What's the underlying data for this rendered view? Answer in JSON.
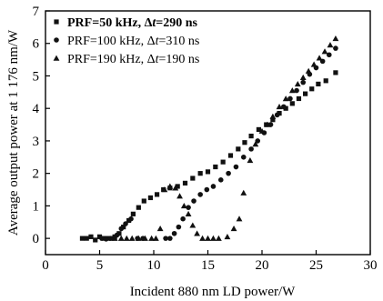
{
  "chart_data": {
    "type": "scatter",
    "title": "",
    "xlabel": "Incident 880 nm LD power/W",
    "ylabel": "Average output power at 1 176 nm/W",
    "xlim": [
      0,
      30
    ],
    "ylim": [
      -0.5,
      7
    ],
    "x_ticks": [
      0,
      5,
      10,
      15,
      20,
      25,
      30
    ],
    "y_ticks": [
      0,
      1,
      2,
      3,
      4,
      5,
      6,
      7
    ],
    "grid": false,
    "legend_position": "top-left",
    "series": [
      {
        "name_parts": [
          "PRF=50 kHz, Δ",
          "t",
          "=290 ns"
        ],
        "marker": "square",
        "bold": true,
        "color": "#111111",
        "points": [
          [
            3.4,
            0.0
          ],
          [
            3.8,
            0.0
          ],
          [
            4.2,
            0.05
          ],
          [
            4.6,
            -0.05
          ],
          [
            5.0,
            0.05
          ],
          [
            5.4,
            0.0
          ],
          [
            5.8,
            0.0
          ],
          [
            6.1,
            0.0
          ],
          [
            6.4,
            0.05
          ],
          [
            6.8,
            0.15
          ],
          [
            7.2,
            0.35
          ],
          [
            7.7,
            0.55
          ],
          [
            8.1,
            0.75
          ],
          [
            8.6,
            0.95
          ],
          [
            9.1,
            1.15
          ],
          [
            9.7,
            1.25
          ],
          [
            10.3,
            1.35
          ],
          [
            10.9,
            1.5
          ],
          [
            11.5,
            1.55
          ],
          [
            12.2,
            1.6
          ],
          [
            12.9,
            1.7
          ],
          [
            13.6,
            1.85
          ],
          [
            14.3,
            2.0
          ],
          [
            15.0,
            2.05
          ],
          [
            15.7,
            2.2
          ],
          [
            16.4,
            2.35
          ],
          [
            17.1,
            2.55
          ],
          [
            17.8,
            2.75
          ],
          [
            18.4,
            2.95
          ],
          [
            19.0,
            3.15
          ],
          [
            19.7,
            3.35
          ],
          [
            20.4,
            3.5
          ],
          [
            21.0,
            3.65
          ],
          [
            21.6,
            3.85
          ],
          [
            22.2,
            4.0
          ],
          [
            22.8,
            4.15
          ],
          [
            23.4,
            4.3
          ],
          [
            24.0,
            4.45
          ],
          [
            24.6,
            4.6
          ],
          [
            25.2,
            4.75
          ],
          [
            25.9,
            4.85
          ],
          [
            26.8,
            5.1
          ]
        ]
      },
      {
        "name_parts": [
          "PRF=100 kHz, Δ",
          "t",
          "=310 ns"
        ],
        "marker": "circle",
        "bold": false,
        "color": "#111111",
        "points": [
          [
            5.2,
            0.0
          ],
          [
            5.6,
            -0.02
          ],
          [
            6.0,
            0.0
          ],
          [
            6.6,
            0.1
          ],
          [
            7.0,
            0.3
          ],
          [
            7.4,
            0.45
          ],
          [
            7.9,
            0.6
          ],
          [
            8.5,
            0.0
          ],
          [
            9.0,
            0.0
          ],
          [
            11.1,
            0.0
          ],
          [
            11.5,
            0.0
          ],
          [
            11.9,
            0.15
          ],
          [
            12.3,
            0.35
          ],
          [
            12.7,
            0.6
          ],
          [
            13.2,
            0.95
          ],
          [
            13.7,
            1.15
          ],
          [
            14.3,
            1.35
          ],
          [
            14.9,
            1.5
          ],
          [
            15.5,
            1.6
          ],
          [
            16.2,
            1.8
          ],
          [
            16.9,
            2.0
          ],
          [
            17.6,
            2.2
          ],
          [
            18.3,
            2.5
          ],
          [
            19.0,
            2.75
          ],
          [
            19.6,
            3.0
          ],
          [
            20.2,
            3.25
          ],
          [
            20.8,
            3.5
          ],
          [
            21.4,
            3.8
          ],
          [
            22.0,
            4.05
          ],
          [
            22.6,
            4.3
          ],
          [
            23.2,
            4.55
          ],
          [
            23.8,
            4.8
          ],
          [
            24.4,
            5.05
          ],
          [
            25.0,
            5.25
          ],
          [
            25.6,
            5.45
          ],
          [
            26.2,
            5.65
          ],
          [
            26.8,
            5.85
          ]
        ]
      },
      {
        "name_parts": [
          "PRF=190 kHz, Δ",
          "t",
          "=190 ns"
        ],
        "marker": "triangle",
        "bold": false,
        "color": "#111111",
        "points": [
          [
            6.4,
            0.0
          ],
          [
            7.0,
            0.0
          ],
          [
            7.5,
            0.0
          ],
          [
            8.0,
            0.0
          ],
          [
            8.6,
            0.0
          ],
          [
            9.2,
            0.0
          ],
          [
            9.8,
            0.0
          ],
          [
            10.2,
            0.0
          ],
          [
            10.6,
            0.3
          ],
          [
            11.0,
            1.5
          ],
          [
            11.5,
            1.6
          ],
          [
            12.0,
            1.55
          ],
          [
            12.4,
            1.3
          ],
          [
            12.8,
            1.0
          ],
          [
            13.2,
            0.75
          ],
          [
            13.6,
            0.4
          ],
          [
            14.0,
            0.15
          ],
          [
            14.5,
            0.0
          ],
          [
            15.0,
            0.0
          ],
          [
            15.5,
            0.0
          ],
          [
            16.0,
            0.0
          ],
          [
            16.8,
            0.05
          ],
          [
            17.4,
            0.3
          ],
          [
            17.9,
            0.6
          ],
          [
            18.3,
            1.4
          ],
          [
            18.9,
            2.4
          ],
          [
            19.4,
            2.9
          ],
          [
            20.0,
            3.3
          ],
          [
            20.5,
            3.5
          ],
          [
            21.0,
            3.75
          ],
          [
            21.6,
            4.05
          ],
          [
            22.2,
            4.3
          ],
          [
            22.8,
            4.55
          ],
          [
            23.3,
            4.75
          ],
          [
            23.8,
            4.95
          ],
          [
            24.3,
            5.15
          ],
          [
            24.8,
            5.35
          ],
          [
            25.3,
            5.55
          ],
          [
            25.8,
            5.75
          ],
          [
            26.3,
            5.95
          ],
          [
            26.8,
            6.15
          ]
        ]
      }
    ]
  }
}
